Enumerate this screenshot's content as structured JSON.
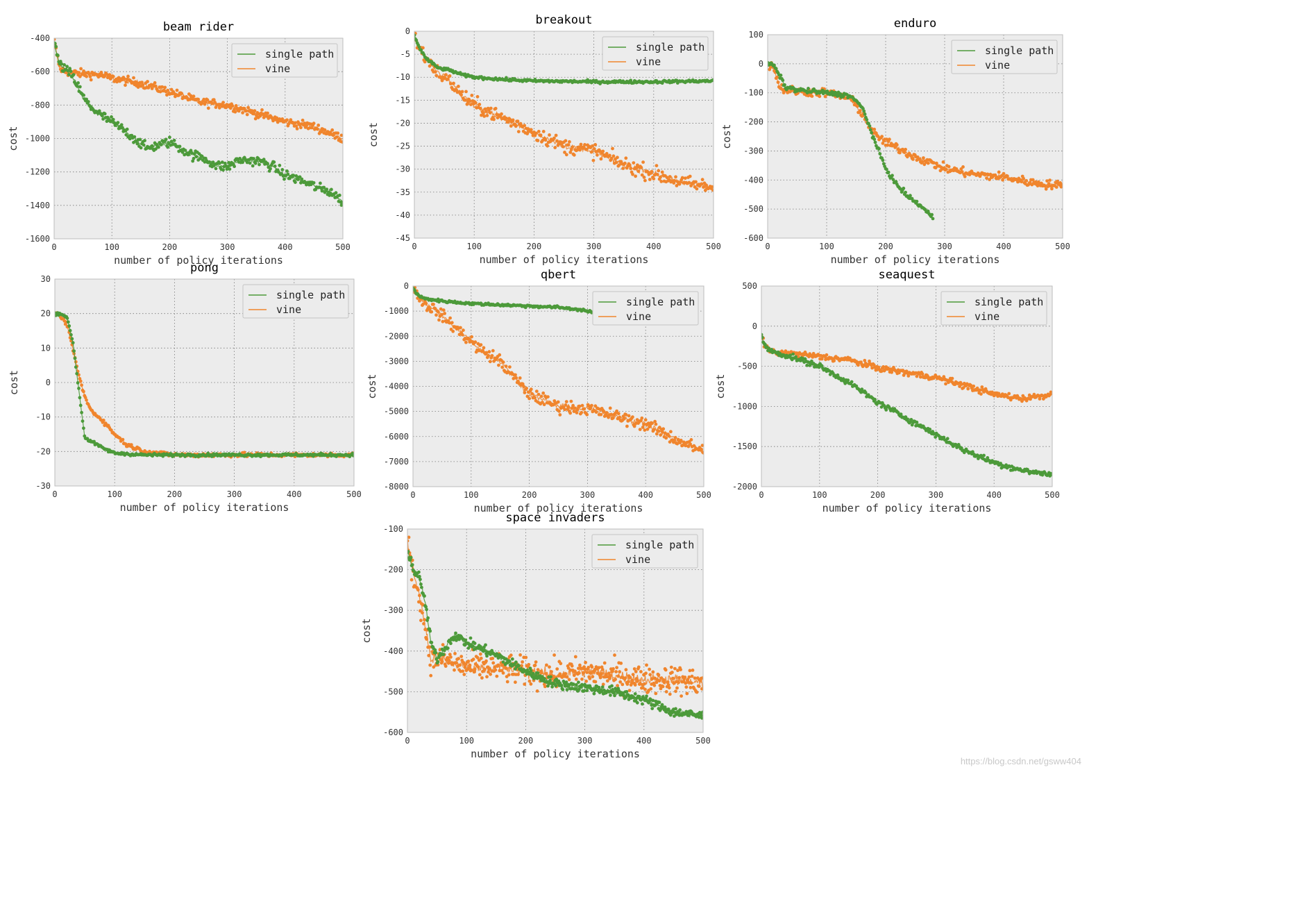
{
  "colors": {
    "single_path": "#4c9a3a",
    "vine": "#f0852d",
    "panel_bg": "#ececec",
    "grid": "#777777"
  },
  "watermark": "https://blog.csdn.net/gsww404",
  "chart_data": [
    {
      "type": "scatter",
      "title": "beam rider",
      "xlabel": "number of policy iterations",
      "ylabel": "cost",
      "xlim": [
        0,
        500
      ],
      "ylim": [
        -1600,
        -400
      ],
      "xticks": [
        0,
        100,
        200,
        300,
        400,
        500
      ],
      "yticks": [
        -400,
        -600,
        -800,
        -1000,
        -1200,
        -1400,
        -1600
      ],
      "legend": "top-right",
      "series": [
        {
          "name": "single path",
          "x": [
            0,
            10,
            20,
            30,
            40,
            50,
            60,
            80,
            100,
            120,
            140,
            160,
            180,
            200,
            220,
            240,
            260,
            280,
            300,
            320,
            340,
            360,
            380,
            400,
            420,
            440,
            460,
            480,
            500
          ],
          "values": [
            -430,
            -560,
            -590,
            -620,
            -680,
            -750,
            -800,
            -860,
            -900,
            -950,
            -1000,
            -1060,
            -1040,
            -1020,
            -1060,
            -1100,
            -1120,
            -1160,
            -1170,
            -1130,
            -1130,
            -1140,
            -1170,
            -1220,
            -1240,
            -1270,
            -1300,
            -1320,
            -1380
          ],
          "noise": 30
        },
        {
          "name": "vine",
          "x": [
            0,
            10,
            20,
            40,
            60,
            80,
            100,
            150,
            200,
            250,
            300,
            350,
            400,
            450,
            500
          ],
          "values": [
            -420,
            -580,
            -600,
            -610,
            -615,
            -620,
            -640,
            -670,
            -720,
            -780,
            -800,
            -850,
            -900,
            -930,
            -1000
          ],
          "noise": 25
        }
      ]
    },
    {
      "type": "scatter",
      "title": "breakout",
      "xlabel": "number of policy iterations",
      "ylabel": "cost",
      "xlim": [
        0,
        500
      ],
      "ylim": [
        -45,
        0
      ],
      "xticks": [
        0,
        100,
        200,
        300,
        400,
        500
      ],
      "yticks": [
        0,
        -5,
        -10,
        -15,
        -20,
        -25,
        -30,
        -35,
        -40,
        -45
      ],
      "legend": "top-right",
      "series": [
        {
          "name": "single path",
          "x": [
            0,
            10,
            20,
            40,
            60,
            80,
            100,
            150,
            200,
            300,
            400,
            500
          ],
          "values": [
            -1,
            -4,
            -6,
            -8,
            -8.5,
            -9.5,
            -10,
            -10.5,
            -10.8,
            -11,
            -11,
            -10.8
          ],
          "noise": 0.3
        },
        {
          "name": "vine",
          "x": [
            0,
            10,
            20,
            40,
            60,
            80,
            100,
            150,
            200,
            250,
            300,
            350,
            400,
            450,
            500
          ],
          "values": [
            -1,
            -4,
            -6,
            -9,
            -11,
            -14,
            -16,
            -19,
            -22,
            -25,
            -26,
            -29,
            -31,
            -33,
            -34
          ],
          "noise": 1.6
        }
      ]
    },
    {
      "type": "scatter",
      "title": "enduro",
      "xlabel": "number of policy iterations",
      "ylabel": "cost",
      "xlim": [
        0,
        500
      ],
      "ylim": [
        -600,
        100
      ],
      "xticks": [
        0,
        100,
        200,
        300,
        400,
        500
      ],
      "yticks": [
        100,
        0,
        -100,
        -200,
        -300,
        -400,
        -500,
        -600
      ],
      "legend": "top-right",
      "series": [
        {
          "name": "single path",
          "x": [
            0,
            10,
            20,
            30,
            50,
            100,
            140,
            160,
            170,
            180,
            200,
            220,
            240,
            260,
            280
          ],
          "values": [
            0,
            -5,
            -40,
            -80,
            -90,
            -100,
            -110,
            -150,
            -200,
            -260,
            -360,
            -420,
            -460,
            -490,
            -530
          ],
          "noise": 8
        },
        {
          "name": "vine",
          "x": [
            0,
            10,
            20,
            30,
            50,
            100,
            140,
            160,
            180,
            200,
            250,
            300,
            350,
            400,
            450,
            500
          ],
          "values": [
            0,
            -10,
            -80,
            -90,
            -95,
            -100,
            -120,
            -170,
            -240,
            -270,
            -320,
            -360,
            -380,
            -390,
            -410,
            -420
          ],
          "noise": 15
        }
      ]
    },
    {
      "type": "scatter",
      "title": "pong",
      "xlabel": "number of policy iterations",
      "ylabel": "cost",
      "xlim": [
        0,
        500
      ],
      "ylim": [
        -30,
        30
      ],
      "xticks": [
        0,
        100,
        200,
        300,
        400,
        500
      ],
      "yticks": [
        30,
        20,
        10,
        0,
        -10,
        -20,
        -30
      ],
      "legend": "top-right",
      "series": [
        {
          "name": "single path",
          "x": [
            0,
            10,
            20,
            30,
            40,
            50,
            60,
            80,
            100,
            150,
            200,
            300,
            400,
            500
          ],
          "values": [
            20,
            20,
            19,
            12,
            -2,
            -16,
            -17,
            -19,
            -20.5,
            -21,
            -21,
            -21,
            -21,
            -21
          ],
          "noise": 0.4
        },
        {
          "name": "vine",
          "x": [
            0,
            10,
            20,
            30,
            40,
            50,
            60,
            80,
            100,
            120,
            150,
            200,
            300,
            400,
            500
          ],
          "values": [
            20,
            19,
            17,
            10,
            2,
            -4,
            -8,
            -11,
            -15,
            -18,
            -20,
            -21,
            -21,
            -21,
            -21
          ],
          "noise": 0.6
        }
      ]
    },
    {
      "type": "scatter",
      "title": "qbert",
      "xlabel": "number of policy iterations",
      "ylabel": "cost",
      "xlim": [
        0,
        500
      ],
      "ylim": [
        -8000,
        0
      ],
      "xticks": [
        0,
        100,
        200,
        300,
        400,
        500
      ],
      "yticks": [
        0,
        -1000,
        -2000,
        -3000,
        -4000,
        -5000,
        -6000,
        -7000,
        -8000
      ],
      "legend": "top-right",
      "series": [
        {
          "name": "single path",
          "x": [
            0,
            10,
            20,
            50,
            100,
            150,
            200,
            250,
            270,
            290,
            300,
            310
          ],
          "values": [
            -100,
            -400,
            -500,
            -600,
            -700,
            -750,
            -800,
            -850,
            -900,
            -950,
            -1000,
            -1050
          ],
          "noise": 50
        },
        {
          "name": "vine",
          "x": [
            0,
            10,
            20,
            40,
            60,
            80,
            100,
            120,
            150,
            180,
            200,
            250,
            300,
            350,
            400,
            450,
            500
          ],
          "values": [
            -100,
            -400,
            -700,
            -1000,
            -1400,
            -1800,
            -2200,
            -2600,
            -3000,
            -3800,
            -4300,
            -4800,
            -4900,
            -5200,
            -5500,
            -6100,
            -6600
          ],
          "noise": 250
        }
      ]
    },
    {
      "type": "scatter",
      "title": "seaquest",
      "xlabel": "number of policy iterations",
      "ylabel": "cost",
      "xlim": [
        0,
        500
      ],
      "ylim": [
        -2000,
        500
      ],
      "xticks": [
        0,
        100,
        200,
        300,
        400,
        500
      ],
      "yticks": [
        500,
        0,
        -500,
        -1000,
        -1500,
        -2000
      ],
      "legend": "top-right",
      "series": [
        {
          "name": "single path",
          "x": [
            0,
            5,
            20,
            50,
            100,
            150,
            200,
            250,
            300,
            350,
            400,
            450,
            500
          ],
          "values": [
            -100,
            -250,
            -320,
            -380,
            -500,
            -700,
            -950,
            -1150,
            -1350,
            -1550,
            -1700,
            -1800,
            -1850
          ],
          "noise": 35
        },
        {
          "name": "vine",
          "x": [
            0,
            5,
            20,
            50,
            100,
            150,
            200,
            250,
            300,
            350,
            400,
            450,
            500
          ],
          "values": [
            -100,
            -250,
            -330,
            -340,
            -380,
            -420,
            -520,
            -580,
            -640,
            -740,
            -850,
            -900,
            -850
          ],
          "noise": 40
        }
      ]
    },
    {
      "type": "scatter",
      "title": "space invaders",
      "xlabel": "number of policy iterations",
      "ylabel": "cost",
      "xlim": [
        0,
        500
      ],
      "ylim": [
        -600,
        -100
      ],
      "xticks": [
        0,
        100,
        200,
        300,
        400,
        500
      ],
      "yticks": [
        -100,
        -200,
        -300,
        -400,
        -500,
        -600
      ],
      "legend": "top-right",
      "series": [
        {
          "name": "single path",
          "x": [
            0,
            10,
            20,
            30,
            40,
            50,
            60,
            80,
            100,
            150,
            200,
            250,
            300,
            350,
            400,
            450,
            500
          ],
          "values": [
            -150,
            -200,
            -220,
            -280,
            -380,
            -420,
            -400,
            -360,
            -380,
            -410,
            -450,
            -480,
            -490,
            -500,
            -520,
            -550,
            -560
          ],
          "noise": 12
        },
        {
          "name": "vine",
          "x": [
            0,
            5,
            20,
            30,
            40,
            60,
            80,
            100,
            150,
            200,
            250,
            300,
            350,
            400,
            450,
            500
          ],
          "values": [
            -130,
            -180,
            -260,
            -340,
            -420,
            -420,
            -430,
            -440,
            -440,
            -450,
            -460,
            -450,
            -460,
            -470,
            -470,
            -480
          ],
          "noise": 35
        }
      ]
    }
  ]
}
